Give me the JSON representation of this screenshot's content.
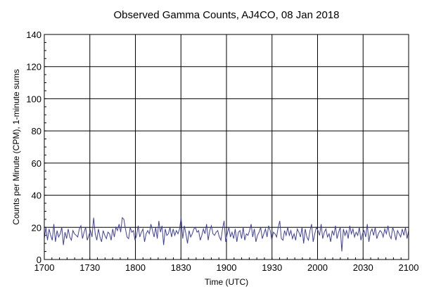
{
  "chart_data": {
    "type": "line",
    "title": "Observed Gamma Counts, AJ4CO, 08 Jan 2018",
    "xlabel": "Time (UTC)",
    "ylabel": "Counts per Minute (CPM), 1-minute sums",
    "x_tick_labels": [
      "1700",
      "1730",
      "1800",
      "1830",
      "1900",
      "1930",
      "2000",
      "2030",
      "2100"
    ],
    "y_tick_labels": [
      "0",
      "20",
      "40",
      "60",
      "80",
      "100",
      "120",
      "140"
    ],
    "y_ticks": [
      0,
      20,
      40,
      60,
      80,
      100,
      120,
      140
    ],
    "ylim": [
      0,
      140
    ],
    "x_start_minute": 0,
    "x_end_minute": 240,
    "grid": true,
    "series_color": "#3f3f9f",
    "series": [
      {
        "values": [
          13,
          20,
          12,
          19,
          15,
          12,
          22,
          11,
          18,
          14,
          16,
          20,
          9,
          17,
          13,
          19,
          14,
          12,
          18,
          16,
          15,
          14,
          19,
          21,
          13,
          17,
          20,
          12,
          15,
          18,
          14,
          26,
          16,
          12,
          19,
          14,
          11,
          18,
          15,
          13,
          17,
          16,
          12,
          19,
          14,
          20,
          18,
          22,
          17,
          26,
          25,
          19,
          14,
          13,
          20,
          17,
          18,
          12,
          15,
          21,
          14,
          17,
          19,
          11,
          16,
          18,
          16,
          22,
          18,
          14,
          20,
          13,
          24,
          17,
          21,
          9,
          19,
          15,
          16,
          20,
          14,
          19,
          15,
          18,
          16,
          19,
          26,
          13,
          21,
          16,
          10,
          18,
          14,
          16,
          19,
          20,
          17,
          18,
          12,
          15,
          19,
          16,
          22,
          12,
          18,
          21,
          16,
          15,
          17,
          18,
          14,
          12,
          19,
          24,
          11,
          16,
          20,
          14,
          17,
          13,
          19,
          11,
          17,
          18,
          13,
          20,
          12,
          16,
          15,
          18,
          22,
          14,
          19,
          11,
          15,
          17,
          20,
          13,
          16,
          19,
          14,
          21,
          18,
          12,
          17,
          16,
          14,
          20,
          24,
          13,
          12,
          18,
          15,
          20,
          15,
          18,
          13,
          16,
          12,
          19,
          17,
          14,
          20,
          10,
          19,
          14,
          12,
          18,
          22,
          11,
          16,
          20,
          18,
          15,
          22,
          13,
          17,
          19,
          14,
          16,
          11,
          18,
          15,
          21,
          13,
          17,
          20,
          5,
          19,
          15,
          18,
          13,
          21,
          16,
          19,
          14,
          17,
          15,
          20,
          12,
          16,
          18,
          14,
          22,
          11,
          17,
          19,
          15,
          20,
          13,
          16,
          18,
          17,
          14,
          19,
          16,
          21,
          15,
          13,
          20,
          17,
          12,
          18,
          16,
          14,
          19,
          15,
          20,
          13,
          18
        ]
      }
    ]
  }
}
